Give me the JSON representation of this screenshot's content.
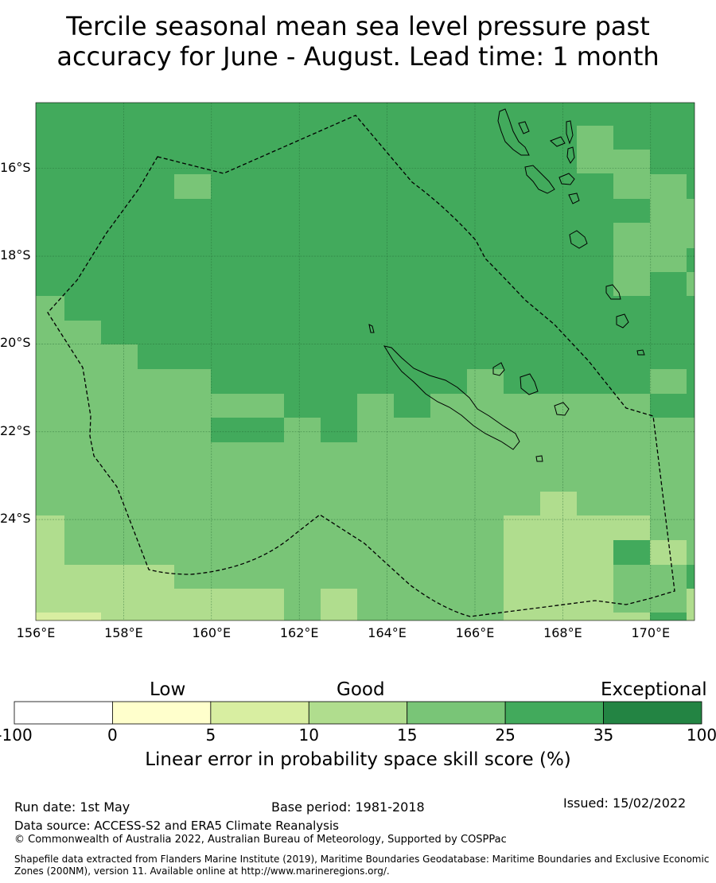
{
  "title_line1": "Tercile seasonal mean sea level pressure past",
  "title_line2": "accuracy for June - August. Lead time: 1 month",
  "map": {
    "lon_range": [
      156,
      171
    ],
    "lat_range": [
      -26.3,
      -14.5
    ],
    "grid_step": 2,
    "lat_labels": [
      "16°S",
      "18°S",
      "20°S",
      "22°S",
      "24°S"
    ],
    "lat_values": [
      -16,
      -18,
      -20,
      -22,
      -24
    ],
    "lon_labels": [
      "156°E",
      "158°E",
      "160°E",
      "162°E",
      "164°E",
      "166°E",
      "168°E",
      "170°E"
    ],
    "lon_values": [
      156,
      158,
      160,
      162,
      164,
      166,
      168,
      170
    ],
    "skill_colors": {
      "c5_10": "#d8eea1",
      "c10_15": "#b0dd8e",
      "c15_25": "#79c577",
      "c25_35": "#42aa5c",
      "c35_100": "#238443"
    },
    "base_color": "#42aa5c"
  },
  "colorbar": {
    "categories": [
      "Low",
      "Good",
      "Exceptional"
    ],
    "tick_labels": [
      "-100",
      "0",
      "5",
      "10",
      "15",
      "25",
      "35",
      "100"
    ],
    "colors": [
      "#ffffff",
      "#ffffcc",
      "#d8eea1",
      "#b0dd8e",
      "#79c577",
      "#42aa5c",
      "#238443"
    ],
    "title": "Linear error in probability space skill score (%)"
  },
  "footer": {
    "run_date": "Run date: 1st May",
    "base_period": "Base period: 1981-2018",
    "issued": "Issued: 15/02/2022",
    "data_source": "Data source: ACCESS-S2 and ERA5 Climate Reanalysis",
    "copyright": "© Commonwealth of Australia 2022, Australian Bureau of Meteorology, Supported by COSPPac",
    "shapefile_line1": "Shapefile data extracted from Flanders Marine Institute (2019), Maritime Boundaries Geodatabase: Maritime Boundaries and Exclusive Economic",
    "shapefile_line2": "Zones (200NM), version 11. Available online at http://www.marineregions.org/."
  }
}
